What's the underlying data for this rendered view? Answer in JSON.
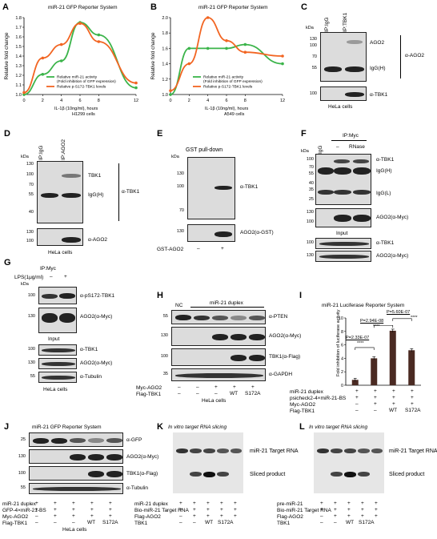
{
  "panels": {
    "A": {
      "letter": "A",
      "title": "miR-21 GFP Reporter System",
      "ylabel": "Relative fold change",
      "xlabel": "IL-1β (10ng/ml), hours",
      "cells": "H1299 cells",
      "legend1": "Relative miR-21 activity",
      "legend1b": "(Fold inhibition of GFP expression)",
      "legend2": "Relative p-S172-TBK1 levels"
    },
    "B": {
      "letter": "B",
      "title": "miR-21 GFP Reporter System",
      "ylabel": "Relative fold change",
      "xlabel": "IL-1β (10ng/ml), hours",
      "cells": "A549 cells",
      "legend1": "Relative miR-21 activity",
      "legend1b": "(Fold inhibition of GFP expression)",
      "legend2": "Relative p-S172-TBK1 levels"
    },
    "C": {
      "letter": "C",
      "lane1": "IP:IgG",
      "lane2": "IP:TBK1",
      "ago2": "AGO2",
      "igg": "IgG(H)",
      "ab": "α-AGO2",
      "tbk1": "α-TBK1",
      "cells": "HeLa cells",
      "kda": "kDa",
      "mw": [
        "130",
        "100",
        "70",
        "55",
        "100"
      ]
    },
    "D": {
      "letter": "D",
      "lane1": "IP:IgG",
      "lane2": "IP:AGO2",
      "tbk1": "TBK1",
      "igg": "IgG(H)",
      "ab": "α-TBK1",
      "ago2": "α-AGO2",
      "cells": "HeLa cells",
      "kda": "kDa",
      "mw": [
        "130",
        "100",
        "70",
        "55",
        "40",
        "130",
        "100"
      ]
    },
    "E": {
      "letter": "E",
      "title": "GST pull-down",
      "tbk1": "α-TBK1",
      "ago2": "AGO2(α-GST)",
      "rowlabel": "GST-AGO2",
      "minus": "–",
      "plus": "+",
      "kda": "kDa",
      "mw": [
        "130",
        "100",
        "70",
        "130"
      ]
    },
    "F": {
      "letter": "F",
      "lane1": "IP:IgG",
      "ipmyc": "IP:Myc",
      "dash": "–",
      "rnase": "RNase",
      "tbk1": "α-TBK1",
      "iggh": "IgG(H)",
      "iggl": "IgG(L)",
      "ago2": "AGO2(α-Myc)",
      "input": "Input",
      "tbk1b": "α-TBK1",
      "ago2b": "AGO2(α-Myc)",
      "kda": "kDa",
      "mw": [
        "100",
        "70",
        "55",
        "40",
        "35",
        "25",
        "130",
        "100",
        "100",
        "130"
      ]
    },
    "G": {
      "letter": "G",
      "ipmyc": "IP:Myc",
      "lps": "LPS(1μg/ml)",
      "minus": "–",
      "plus": "+",
      "ps172": "α-pS172-TBK1",
      "ago2": "AGO2(α-Myc)",
      "input": "Input",
      "tbk1": "α-TBK1",
      "ago2b": "AGO2(α-Myc)",
      "tubulin": "α-Tubulin",
      "cells": "HeLa cells",
      "kda": "kDa",
      "mw": [
        "100",
        "130",
        "100",
        "130",
        "55"
      ]
    },
    "H": {
      "letter": "H",
      "nc": "NC",
      "duplex": "miR-21 duplex",
      "pten": "α-PTEN",
      "ago2": "AGO2(α-Myc)",
      "tbk1": "TBK1(α-Flag)",
      "gapdh": "α-GAPDH",
      "row1": "Myc-AGO2",
      "row2": "Flag-TBK1",
      "cells": "HeLa cells",
      "mw": [
        "55",
        "130",
        "100",
        "35"
      ],
      "r1": [
        "–",
        "–",
        "+",
        "+",
        "+"
      ],
      "r2": [
        "–",
        "–",
        "–",
        "WT",
        "S172A"
      ]
    },
    "J": {
      "letter": "J",
      "title": "miR-21 GFP Reporter System",
      "gfp": "α-GFP",
      "ago2": "AGO2(α-Myc)",
      "tbk1": "TBK1(α-Flag)",
      "tubulin": "α-Tubulin",
      "row1": "miR-21 duplex",
      "row2": "GFP-4×miR-21-BS",
      "row3": "Myc-AGO2",
      "row4": "Flag-TBK1",
      "cells": "HeLa cells",
      "mw": [
        "25",
        "130",
        "100",
        "55"
      ],
      "r1": [
        "+",
        "+",
        "+",
        "+",
        "+"
      ],
      "r2": [
        "+",
        "+",
        "+",
        "+",
        "+"
      ],
      "r3": [
        "–",
        "+",
        "+",
        "+",
        "+"
      ],
      "r4": [
        "–",
        "–",
        "–",
        "WT",
        "S172A"
      ]
    },
    "K": {
      "letter": "K",
      "title": "In vitro target RNA slicing",
      "target": "miR-21 Target RNA",
      "sliced": "Sliced product",
      "row1": "miR-21 duplex",
      "row2": "Bio-miR-21 Target RNA",
      "row3": "Flag-AGO2",
      "row4": "TBK1",
      "r1": [
        "+",
        "+",
        "+",
        "+",
        "+"
      ],
      "r2": [
        "+",
        "+",
        "+",
        "+",
        "+"
      ],
      "r3": [
        "–",
        "+",
        "+",
        "+",
        "+"
      ],
      "r4": [
        "–",
        "–",
        "WT",
        "S172A",
        ""
      ]
    },
    "L": {
      "letter": "L",
      "title": "In vitro target RNA slicing",
      "target": "miR-21 Target RNA",
      "sliced": "Sliced product",
      "row1": "pre-miR-21",
      "row2": "Bio-miR-21 Target RNA",
      "row3": "Flag-AGO2",
      "row4": "TBK1",
      "r1": [
        "+",
        "+",
        "+",
        "+",
        "+"
      ],
      "r2": [
        "+",
        "+",
        "+",
        "+",
        "+"
      ],
      "r3": [
        "–",
        "+",
        "+",
        "+",
        "+"
      ],
      "r4": [
        "–",
        "–",
        "WT",
        "S172A",
        ""
      ]
    },
    "I": {
      "letter": "I",
      "title": "miR-21 Luciferase Reporter System",
      "ylabel": "Fold inhibition of luciferase activity",
      "p1": "P=2.33E-07",
      "p2": "P=2.94E-08",
      "p3": "P=5.60E-07",
      "stars": "****",
      "row1": "miR-21 duplex",
      "row2": "psicheck2-4×miR-21-BS",
      "row3": "Myc-AGO2",
      "row4": "Flag-TBK1",
      "r1": [
        "+",
        "+",
        "+",
        "+"
      ],
      "r2": [
        "+",
        "+",
        "+",
        "+"
      ],
      "r3": [
        "–",
        "+",
        "+",
        "+"
      ],
      "r4": [
        "–",
        "–",
        "WT",
        "S172A"
      ]
    }
  },
  "chart_data": [
    {
      "type": "line",
      "title": "miR-21 GFP Reporter System",
      "xlabel": "IL-1β (10ng/ml), hours",
      "ylabel": "Relative fold change",
      "x": [
        0,
        2,
        4,
        6,
        8,
        12
      ],
      "xlim": [
        0,
        12
      ],
      "ylim": [
        1.0,
        1.8
      ],
      "legend": "bottom",
      "series": [
        {
          "name": "Relative miR-21 activity (Fold inhibition of GFP expression)",
          "color": "#3bb44a",
          "values": [
            1.0,
            1.21,
            1.35,
            1.75,
            1.62,
            1.07
          ]
        },
        {
          "name": "Relative p-S172-TBK1 levels",
          "color": "#f26522",
          "values": [
            1.02,
            1.38,
            1.52,
            1.74,
            1.55,
            1.12
          ]
        }
      ]
    },
    {
      "type": "line",
      "title": "miR-21 GFP Reporter System",
      "xlabel": "IL-1β (10ng/ml), hours",
      "ylabel": "Relative fold change",
      "x": [
        0,
        2,
        4,
        6,
        8,
        12
      ],
      "xlim": [
        0,
        12
      ],
      "ylim": [
        1.0,
        2.0
      ],
      "legend": "bottom",
      "series": [
        {
          "name": "Relative miR-21 activity (Fold inhibition of GFP expression)",
          "color": "#3bb44a",
          "values": [
            1.0,
            1.6,
            1.6,
            1.6,
            1.65,
            1.4
          ]
        },
        {
          "name": "Relative p-S172-TBK1 levels",
          "color": "#f26522",
          "values": [
            1.05,
            1.4,
            2.0,
            1.7,
            1.55,
            1.5
          ]
        }
      ]
    },
    {
      "type": "bar",
      "title": "miR-21 Luciferase Reporter System",
      "ylabel": "Fold inhibition of luciferase activity",
      "categories": [
        "1",
        "2",
        "3",
        "4"
      ],
      "values": [
        0.8,
        4.0,
        8.1,
        5.2
      ],
      "ylim": [
        0,
        10
      ],
      "yticks": [
        0,
        2,
        4,
        6,
        8,
        10
      ],
      "color": "#4a2a22"
    }
  ],
  "colors": {
    "green": "#3bb44a",
    "orange": "#f26522",
    "bar": "#4a2a22"
  }
}
